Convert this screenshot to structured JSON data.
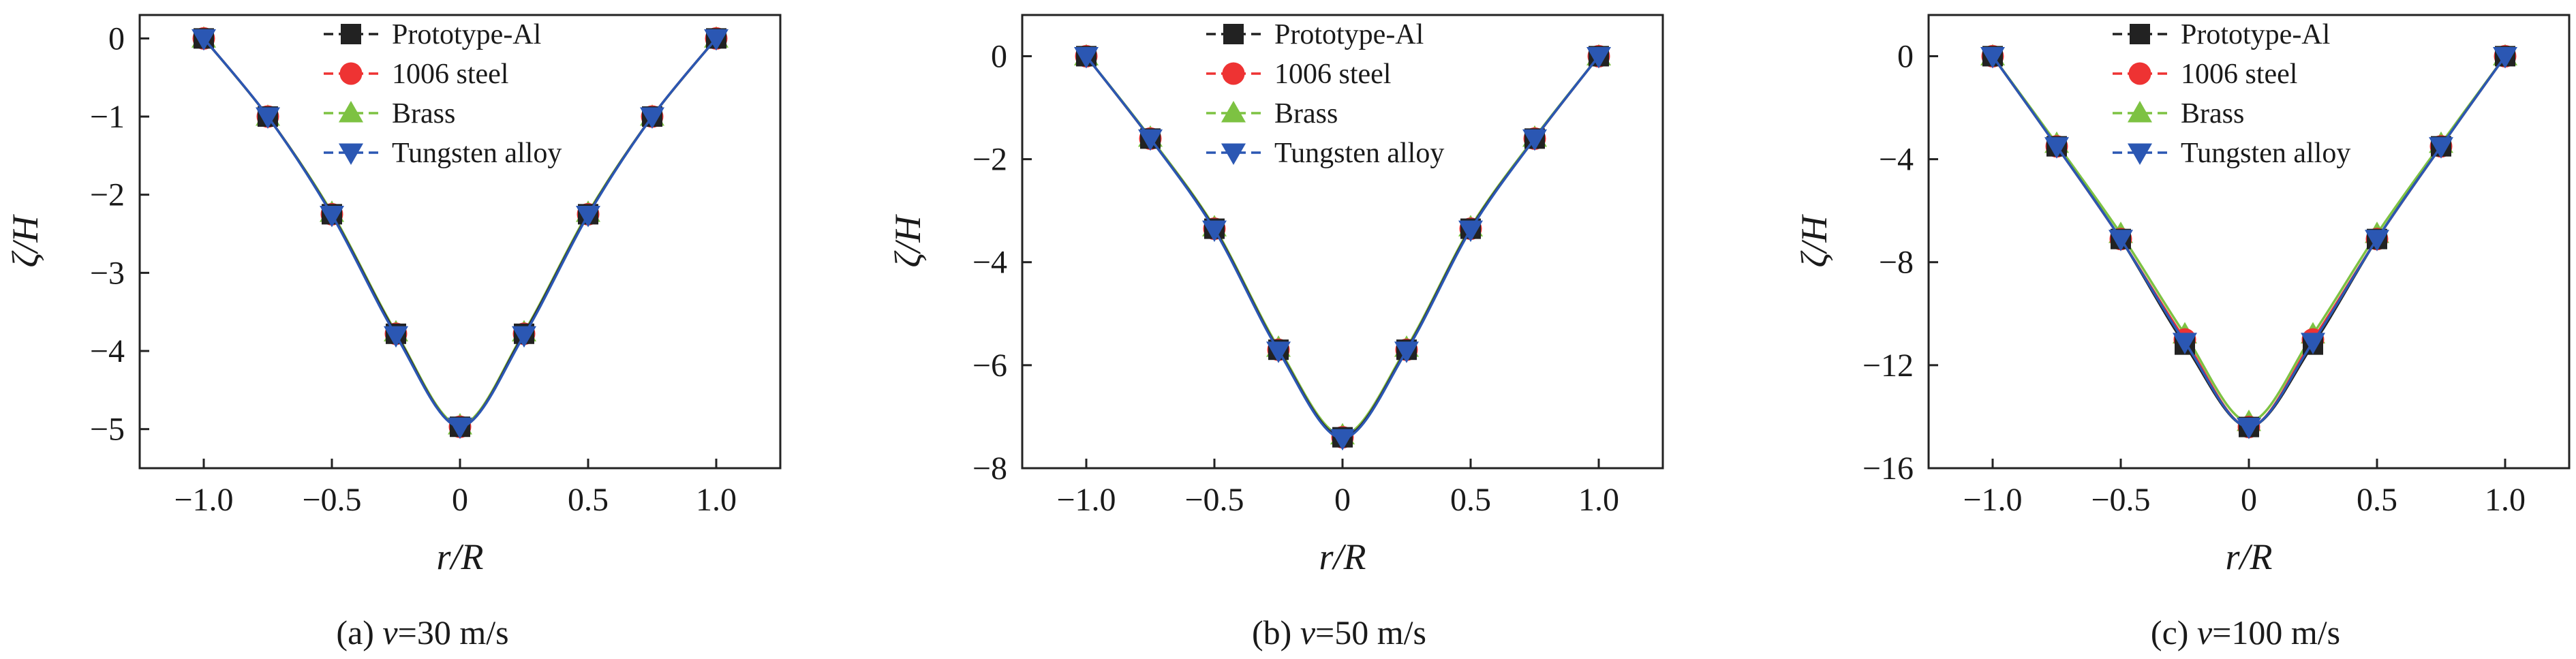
{
  "figure": {
    "captions": [
      {
        "prefix": "(a) ",
        "var": "v",
        "rest": "=30 m/s"
      },
      {
        "prefix": "(b) ",
        "var": "v",
        "rest": "=50 m/s"
      },
      {
        "prefix": "(c) ",
        "var": "v",
        "rest": "=100 m/s"
      }
    ]
  },
  "colors": {
    "Prototype-Al": "#222222",
    "1006 steel": "#ee3333",
    "Brass": "#7dc242",
    "Tungsten alloy": "#2b57b3"
  },
  "chart_data": [
    {
      "type": "line",
      "xlabel": "r/R",
      "ylabel": "ζ/H",
      "xlim": [
        -1.25,
        1.25
      ],
      "ylim": [
        -5.5,
        0.3
      ],
      "xticks": [
        -1.0,
        -0.5,
        0,
        0.5,
        1.0
      ],
      "xtick_labels": [
        "−1.0",
        "−0.5",
        "0",
        "0.5",
        "1.0"
      ],
      "yticks": [
        0,
        -1,
        -2,
        -3,
        -4,
        -5
      ],
      "ytick_labels": [
        "0",
        "−1",
        "−2",
        "−3",
        "−4",
        "−5"
      ],
      "legend_position": "top-right",
      "x": [
        -1.0,
        -0.75,
        -0.5,
        -0.25,
        0,
        0.25,
        0.5,
        0.75,
        1.0
      ],
      "series": [
        {
          "name": "Prototype-Al",
          "marker": "square",
          "values": [
            0,
            -1.0,
            -2.25,
            -3.78,
            -4.97,
            -3.78,
            -2.25,
            -1.0,
            0
          ]
        },
        {
          "name": "1006 steel",
          "marker": "circle",
          "values": [
            0,
            -1.0,
            -2.25,
            -3.78,
            -4.97,
            -3.78,
            -2.25,
            -1.0,
            0
          ]
        },
        {
          "name": "Brass",
          "marker": "triangle-up",
          "values": [
            0,
            -1.0,
            -2.23,
            -3.76,
            -4.95,
            -3.76,
            -2.23,
            -1.0,
            0
          ]
        },
        {
          "name": "Tungsten alloy",
          "marker": "triangle-down",
          "values": [
            0,
            -1.0,
            -2.26,
            -3.8,
            -4.97,
            -3.8,
            -2.26,
            -1.0,
            0
          ]
        }
      ]
    },
    {
      "type": "line",
      "xlabel": "r/R",
      "ylabel": "ζ/H",
      "xlim": [
        -1.25,
        1.25
      ],
      "ylim": [
        -8,
        0.8
      ],
      "xticks": [
        -1.0,
        -0.5,
        0,
        0.5,
        1.0
      ],
      "xtick_labels": [
        "−1.0",
        "−0.5",
        "0",
        "0.5",
        "1.0"
      ],
      "yticks": [
        0,
        -2,
        -4,
        -6,
        -8
      ],
      "ytick_labels": [
        "0",
        "−2",
        "−4",
        "−6",
        "−8"
      ],
      "legend_position": "top-right",
      "x": [
        -1.0,
        -0.75,
        -0.5,
        -0.25,
        0,
        0.25,
        0.5,
        0.75,
        1.0
      ],
      "series": [
        {
          "name": "Prototype-Al",
          "marker": "square",
          "values": [
            0,
            -1.6,
            -3.35,
            -5.7,
            -7.4,
            -5.7,
            -3.35,
            -1.6,
            0
          ]
        },
        {
          "name": "1006 steel",
          "marker": "circle",
          "values": [
            0,
            -1.6,
            -3.35,
            -5.7,
            -7.4,
            -5.7,
            -3.35,
            -1.6,
            0
          ]
        },
        {
          "name": "Brass",
          "marker": "triangle-up",
          "values": [
            0,
            -1.58,
            -3.32,
            -5.66,
            -7.36,
            -5.66,
            -3.32,
            -1.58,
            0
          ]
        },
        {
          "name": "Tungsten alloy",
          "marker": "triangle-down",
          "values": [
            0,
            -1.6,
            -3.37,
            -5.72,
            -7.42,
            -5.72,
            -3.37,
            -1.6,
            0
          ]
        }
      ]
    },
    {
      "type": "line",
      "xlabel": "r/R",
      "ylabel": "ζ/H",
      "xlim": [
        -1.25,
        1.25
      ],
      "ylim": [
        -16,
        1.6
      ],
      "xticks": [
        -1.0,
        -0.5,
        0,
        0.5,
        1.0
      ],
      "xtick_labels": [
        "−1.0",
        "−0.5",
        "0",
        "0.5",
        "1.0"
      ],
      "yticks": [
        0,
        -4,
        -8,
        -12,
        -16
      ],
      "ytick_labels": [
        "0",
        "−4",
        "−8",
        "−12",
        "−16"
      ],
      "legend_position": "top-right",
      "x": [
        -1.0,
        -0.75,
        -0.5,
        -0.25,
        0,
        0.25,
        0.5,
        0.75,
        1.0
      ],
      "series": [
        {
          "name": "Prototype-Al",
          "marker": "square",
          "values": [
            0,
            -3.5,
            -7.1,
            -11.2,
            -14.4,
            -11.2,
            -7.1,
            -3.5,
            0
          ]
        },
        {
          "name": "1006 steel",
          "marker": "circle",
          "values": [
            0,
            -3.5,
            -7.1,
            -11.0,
            -14.4,
            -11.0,
            -7.1,
            -3.5,
            0
          ]
        },
        {
          "name": "Brass",
          "marker": "triangle-up",
          "values": [
            0,
            -3.4,
            -6.9,
            -10.8,
            -14.2,
            -10.8,
            -6.9,
            -3.4,
            0
          ]
        },
        {
          "name": "Tungsten alloy",
          "marker": "triangle-down",
          "values": [
            0,
            -3.5,
            -7.1,
            -11.1,
            -14.4,
            -11.1,
            -7.1,
            -3.5,
            0
          ]
        }
      ]
    }
  ]
}
